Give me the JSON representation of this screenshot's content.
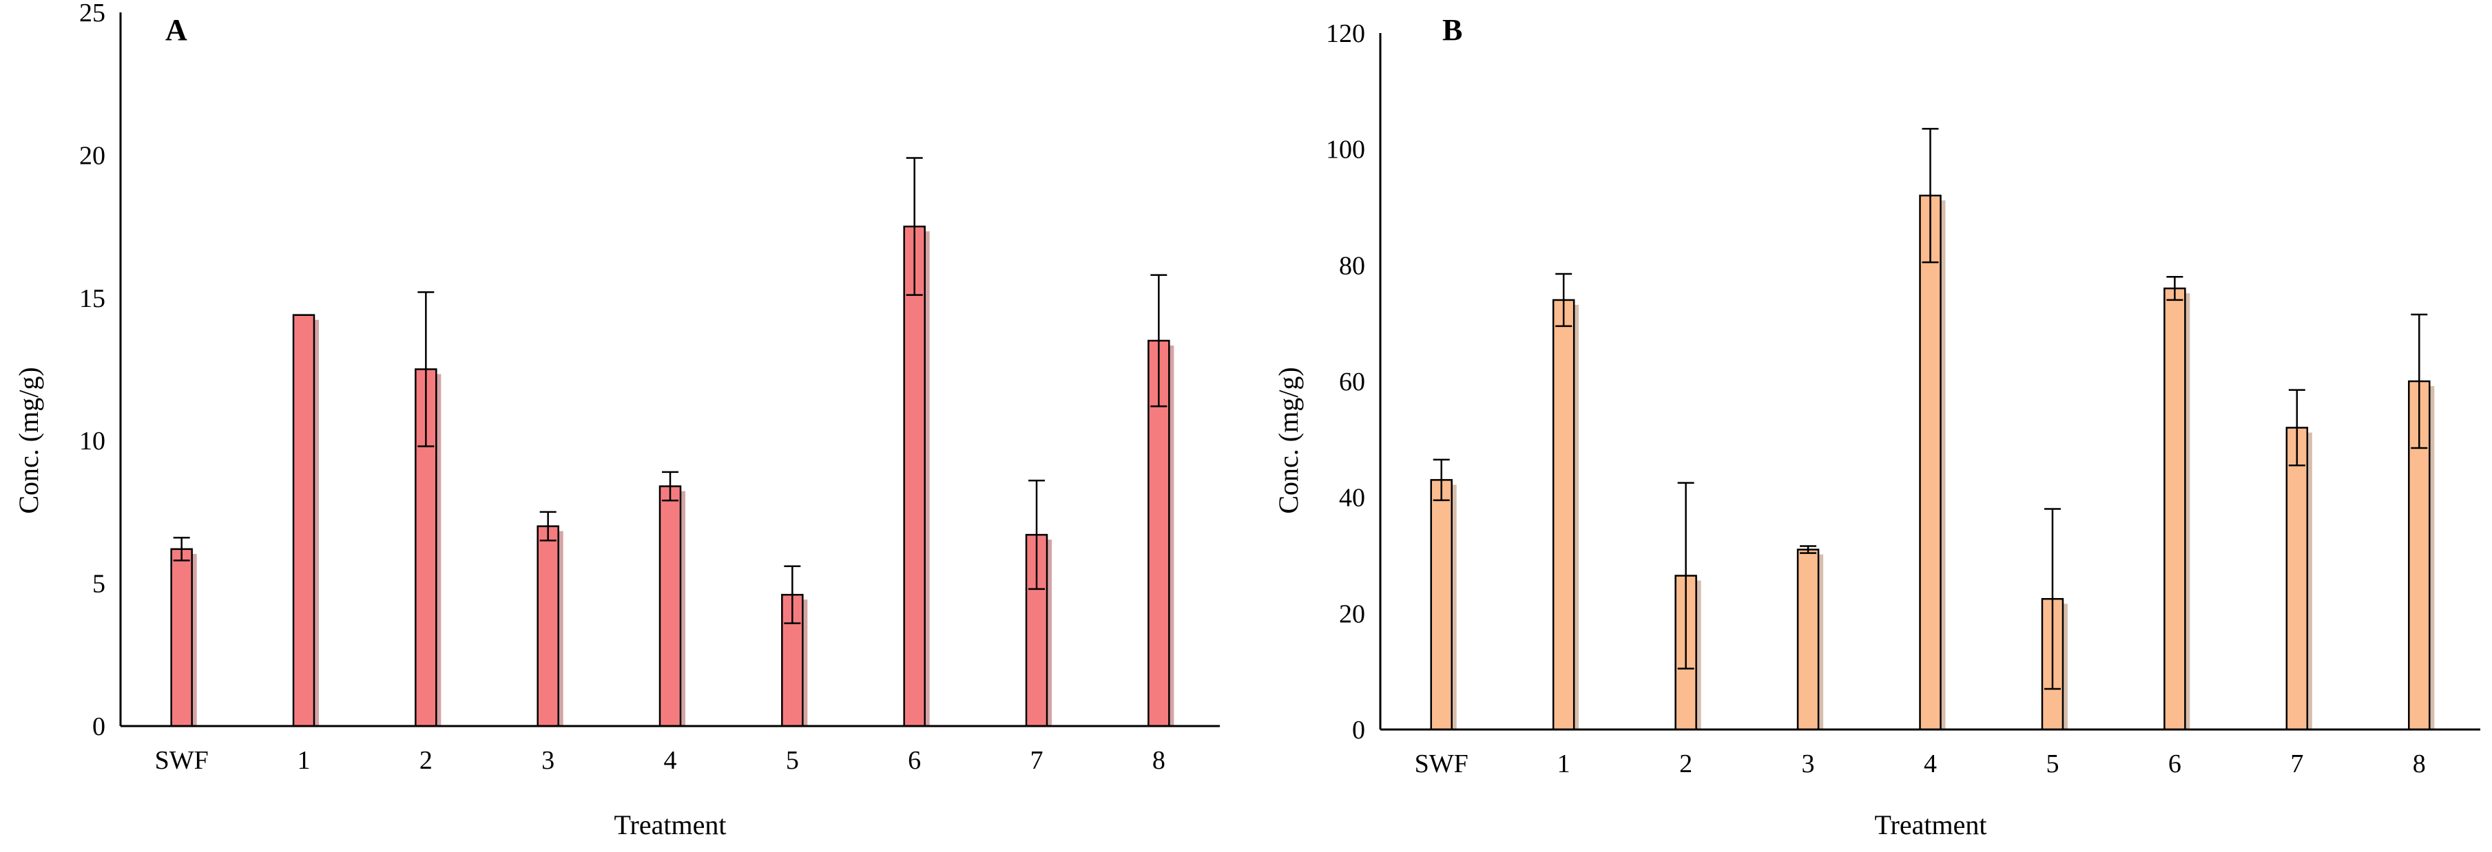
{
  "chart_data": [
    {
      "type": "bar",
      "panel": "A",
      "categories": [
        "SWF",
        "1",
        "2",
        "3",
        "4",
        "5",
        "6",
        "7",
        "8"
      ],
      "values": [
        6.2,
        14.4,
        12.5,
        7.0,
        8.4,
        4.6,
        17.5,
        6.7,
        13.5
      ],
      "errors": [
        0.4,
        0.0,
        2.7,
        0.5,
        0.5,
        1.0,
        2.4,
        1.9,
        2.3
      ],
      "ylabel": "Conc. (mg/g)",
      "xlabel": "Treatment",
      "ylim": [
        0,
        25
      ],
      "yticks": [
        "0",
        "5",
        "10",
        "15",
        "20",
        "25"
      ],
      "ytick_values": [
        0,
        5,
        10,
        15,
        20,
        25
      ],
      "color": "#f47c7f"
    },
    {
      "type": "bar",
      "panel": "B",
      "categories": [
        "SWF",
        "1",
        "2",
        "3",
        "4",
        "5",
        "6",
        "7",
        "8"
      ],
      "values": [
        43,
        74,
        26.5,
        31,
        92,
        22.5,
        76,
        52,
        60
      ],
      "errors": [
        3.5,
        4.5,
        16,
        0.6,
        11.5,
        15.5,
        2,
        6.5,
        11.5
      ],
      "ylabel": "Conc. (mg/g)",
      "xlabel": "Treatment",
      "ylim": [
        0,
        120
      ],
      "yticks": [
        "0",
        "20",
        "40",
        "60",
        "80",
        "100",
        "120"
      ],
      "ytick_values": [
        0,
        20,
        40,
        60,
        80,
        100,
        120
      ],
      "color": "#fbbc8f"
    }
  ]
}
